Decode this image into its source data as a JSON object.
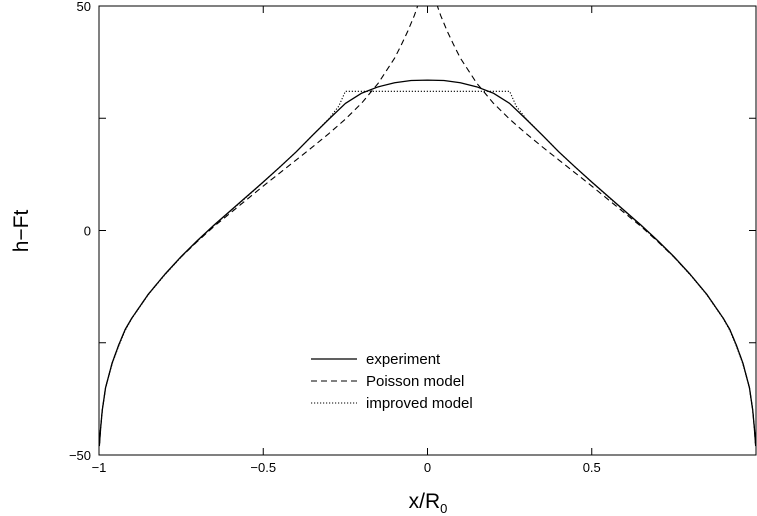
{
  "chart_data": {
    "type": "line",
    "title": "",
    "xlabel": {
      "main": "x/R",
      "sub": "0"
    },
    "ylabel": "h−Ft",
    "xlim": [
      -1,
      1
    ],
    "ylim": [
      -50,
      50
    ],
    "xticks": [
      {
        "value": -1,
        "label": "−1"
      },
      {
        "value": -0.5,
        "label": "−0.5"
      },
      {
        "value": 0,
        "label": "0"
      },
      {
        "value": 0.5,
        "label": "0.5"
      }
    ],
    "yticks": [
      {
        "value": -50,
        "label": "−50"
      },
      {
        "value": 0,
        "label": "0"
      },
      {
        "value": 50,
        "label": "50"
      }
    ],
    "minor_ticks": {
      "x": [
        1
      ],
      "y": [
        -25,
        25
      ]
    },
    "grid": false,
    "legend": {
      "placement": "bottom-center"
    },
    "series": [
      {
        "name": "experiment",
        "style": "solid",
        "x": [
          -0.999,
          -0.995,
          -0.99,
          -0.98,
          -0.96,
          -0.94,
          -0.92,
          -0.9,
          -0.85,
          -0.8,
          -0.75,
          -0.7,
          -0.65,
          -0.6,
          -0.55,
          -0.5,
          -0.45,
          -0.4,
          -0.35,
          -0.3,
          -0.25,
          -0.2,
          -0.15,
          -0.1,
          -0.05,
          0,
          0.05,
          0.1,
          0.15,
          0.2,
          0.25,
          0.3,
          0.35,
          0.4,
          0.45,
          0.5,
          0.55,
          0.6,
          0.65,
          0.7,
          0.75,
          0.8,
          0.85,
          0.9,
          0.92,
          0.94,
          0.96,
          0.98,
          0.99,
          0.995,
          0.999
        ],
        "y": [
          -48,
          -44,
          -40,
          -35,
          -29.5,
          -25.5,
          -22,
          -19.5,
          -14.2,
          -9.8,
          -5.8,
          -2.2,
          1.2,
          4.4,
          7.6,
          10.8,
          14.1,
          17.5,
          21.2,
          24.8,
          28.3,
          30.6,
          32,
          32.9,
          33.4,
          33.5,
          33.4,
          32.9,
          32,
          30.6,
          28.3,
          24.8,
          21.2,
          17.5,
          14.1,
          10.8,
          7.6,
          4.4,
          1.2,
          -2.2,
          -5.8,
          -9.8,
          -14.2,
          -19.5,
          -22,
          -25.5,
          -29.5,
          -35,
          -40,
          -44,
          -48
        ]
      },
      {
        "name": "Poisson model",
        "style": "dashed",
        "x": [
          -0.999,
          -0.995,
          -0.99,
          -0.98,
          -0.96,
          -0.94,
          -0.92,
          -0.9,
          -0.85,
          -0.8,
          -0.75,
          -0.7,
          -0.65,
          -0.6,
          -0.55,
          -0.5,
          -0.45,
          -0.4,
          -0.35,
          -0.3,
          -0.25,
          -0.2,
          -0.15,
          -0.1,
          -0.08,
          -0.06,
          -0.04,
          -0.03,
          0.03,
          0.04,
          0.06,
          0.08,
          0.1,
          0.15,
          0.2,
          0.25,
          0.3,
          0.35,
          0.4,
          0.45,
          0.5,
          0.55,
          0.6,
          0.65,
          0.7,
          0.75,
          0.8,
          0.85,
          0.9,
          0.92,
          0.94,
          0.96,
          0.98,
          0.99,
          0.995,
          0.999
        ],
        "y": [
          -48,
          -44,
          -40,
          -35,
          -29.5,
          -25.5,
          -22,
          -19.5,
          -14.2,
          -9.8,
          -5.9,
          -2.4,
          0.9,
          3.9,
          6.9,
          9.9,
          12.8,
          15.7,
          18.6,
          21.6,
          24.8,
          28.4,
          32.8,
          38.4,
          41.3,
          44.4,
          47.9,
          50,
          50,
          47.9,
          44.4,
          41.3,
          38.4,
          32.8,
          28.4,
          24.8,
          21.6,
          18.6,
          15.7,
          12.8,
          9.9,
          6.9,
          3.9,
          0.9,
          -2.4,
          -5.9,
          -9.8,
          -14.2,
          -19.5,
          -22,
          -25.5,
          -29.5,
          -35,
          -40,
          -44,
          -48
        ]
      },
      {
        "name": "improved model",
        "style": "dotted",
        "x": [
          -0.999,
          -0.995,
          -0.99,
          -0.98,
          -0.96,
          -0.94,
          -0.92,
          -0.9,
          -0.85,
          -0.8,
          -0.75,
          -0.7,
          -0.65,
          -0.6,
          -0.55,
          -0.5,
          -0.45,
          -0.4,
          -0.35,
          -0.3,
          -0.27,
          -0.25,
          0.25,
          0.27,
          0.3,
          0.35,
          0.4,
          0.45,
          0.5,
          0.55,
          0.6,
          0.65,
          0.7,
          0.75,
          0.8,
          0.85,
          0.9,
          0.92,
          0.94,
          0.96,
          0.98,
          0.99,
          0.995,
          0.999
        ],
        "y": [
          -48,
          -44,
          -40,
          -35,
          -29.7,
          -25.7,
          -22.2,
          -19.6,
          -14.3,
          -9.9,
          -5.9,
          -2.3,
          1.1,
          4.3,
          7.5,
          10.8,
          14.1,
          17.5,
          21.2,
          24.9,
          27.7,
          31,
          31,
          27.7,
          24.9,
          21.2,
          17.5,
          14.1,
          10.8,
          7.5,
          4.3,
          1.1,
          -2.3,
          -5.9,
          -9.9,
          -14.3,
          -19.6,
          -22.2,
          -25.7,
          -29.7,
          -35,
          -40,
          -44,
          -48
        ]
      }
    ]
  }
}
